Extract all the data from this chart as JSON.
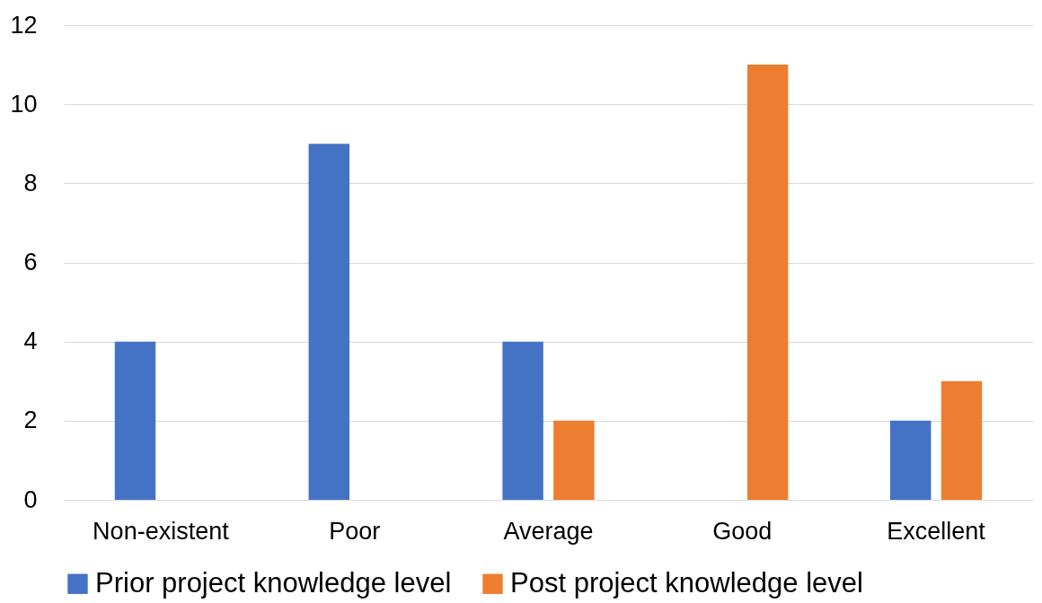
{
  "chart_data": {
    "type": "bar",
    "categories": [
      "Non-existent",
      "Poor",
      "Average",
      "Good",
      "Excellent"
    ],
    "series": [
      {
        "name": "Prior project knowledge level",
        "color": "#4472c4",
        "values": [
          4,
          9,
          4,
          0,
          2
        ]
      },
      {
        "name": "Post project knowledge level",
        "color": "#ed7d31",
        "values": [
          0,
          0,
          2,
          11,
          3
        ]
      }
    ],
    "ylim": [
      0,
      12
    ],
    "yticks": [
      0,
      2,
      4,
      6,
      8,
      10,
      12
    ],
    "grid": "y",
    "legend": "bottom"
  }
}
